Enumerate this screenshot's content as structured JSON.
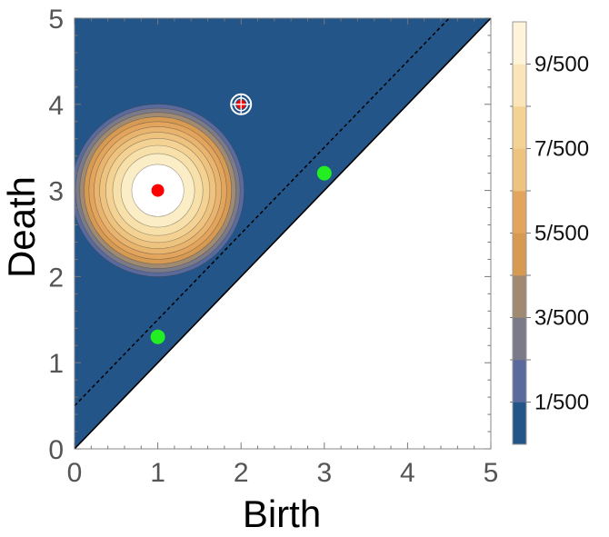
{
  "chart_data": {
    "type": "contour",
    "title": "",
    "xlabel": "Birth",
    "ylabel": "Death",
    "xlim": [
      0,
      5
    ],
    "ylim": [
      0,
      5
    ],
    "x_ticks": [
      "0",
      "1",
      "2",
      "3",
      "4",
      "5"
    ],
    "y_ticks": [
      "0",
      "1",
      "2",
      "3",
      "4",
      "5"
    ],
    "background_color": "#235589",
    "diagonal": {
      "from": [
        0,
        0
      ],
      "to": [
        5,
        5
      ],
      "style": "solid"
    },
    "dashed_line": {
      "from": [
        0,
        0.5
      ],
      "to": [
        4.5,
        5
      ],
      "style": "dashed"
    },
    "density": {
      "center": [
        1,
        3
      ],
      "levels": 11,
      "fill_colors": [
        "#235589",
        "#5a6a9c",
        "#7b7a88",
        "#a08a72",
        "#d79a52",
        "#e3a55d",
        "#e8b46e",
        "#eec37f",
        "#f3d293",
        "#f7e0aa",
        "#fbedc5",
        "#ffffff"
      ]
    },
    "red_points": [
      {
        "x": 1,
        "y": 3
      },
      {
        "x": 2,
        "y": 4,
        "marker": "target"
      }
    ],
    "green_points": [
      {
        "x": 1,
        "y": 1.3
      },
      {
        "x": 3,
        "y": 3.2
      }
    ],
    "colors": {
      "red": "#ff0000",
      "green": "#22ee22"
    },
    "colorbar": {
      "range": [
        0,
        0.02
      ],
      "band_colors": [
        "#235589",
        "#5a6a9c",
        "#7b7a88",
        "#a08a72",
        "#d79a52",
        "#e3a55d",
        "#eec37f",
        "#f3d293",
        "#fbe5b8",
        "#fff4da"
      ],
      "labels": [
        "1/500",
        "3/500",
        "5/500",
        "7/500",
        "9/500"
      ]
    }
  }
}
